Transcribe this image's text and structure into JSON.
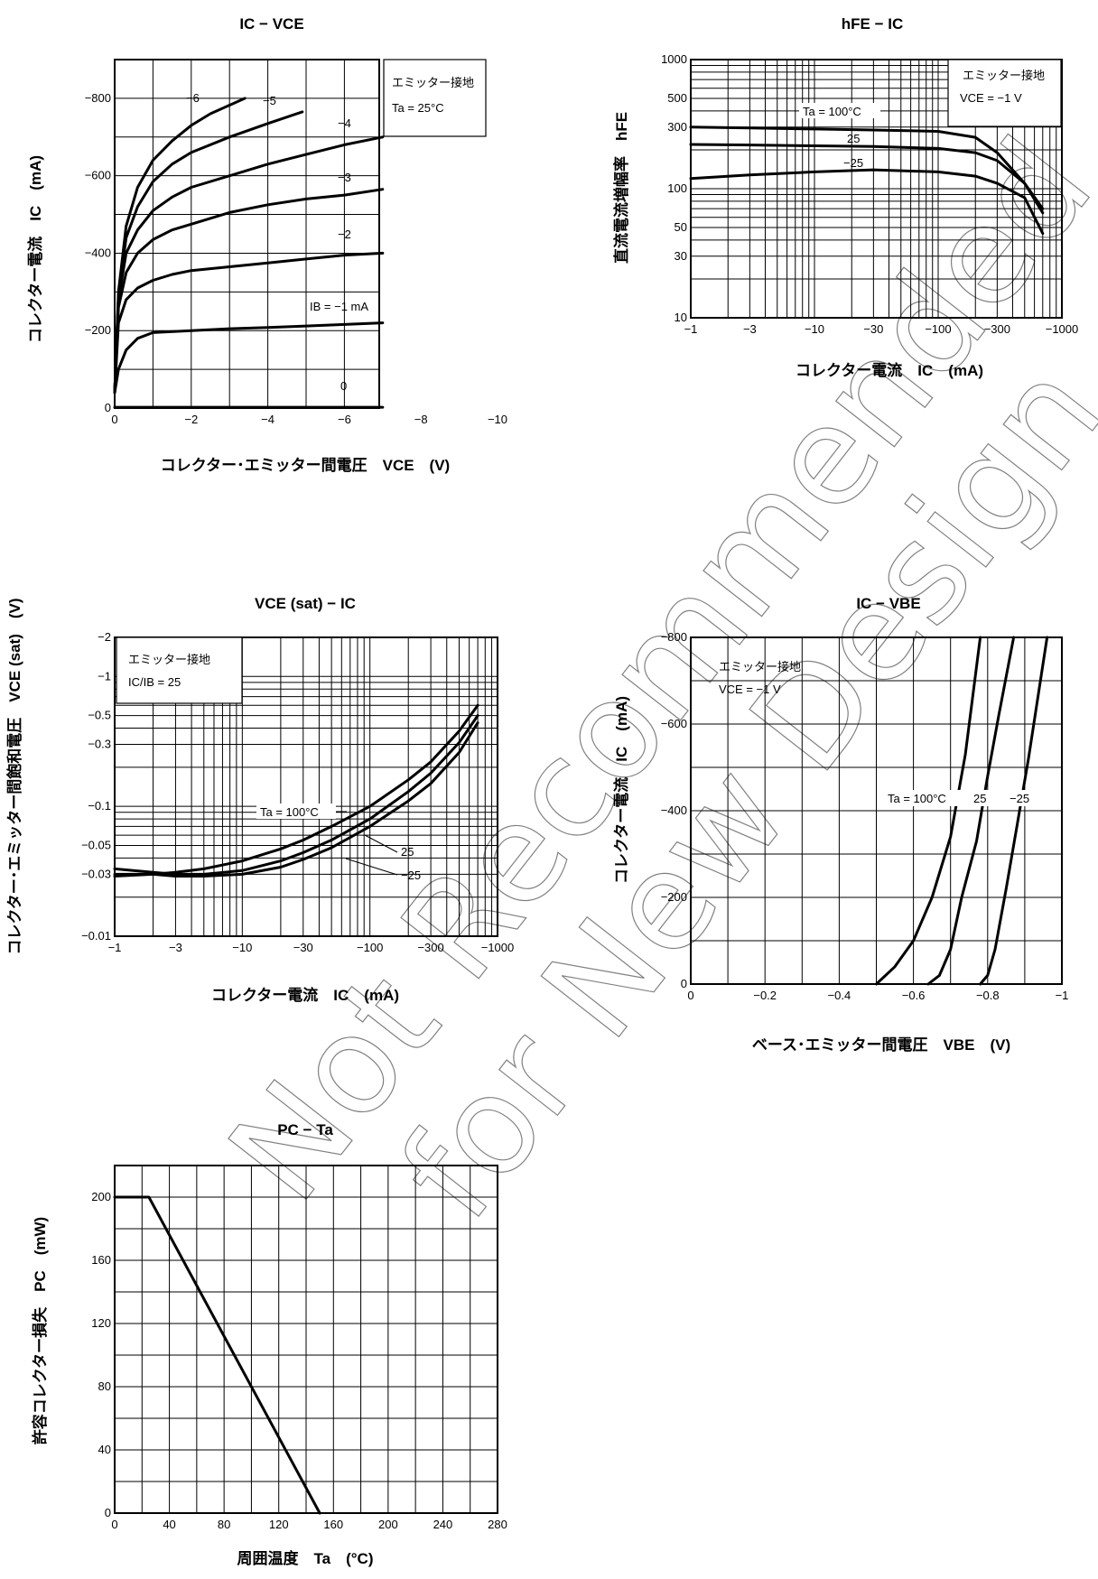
{
  "chart_data": [
    {
      "type": "line",
      "title": "IC − VCE",
      "xlabel": "コレクター･エミッター間電圧　VCE　(V)",
      "ylabel": "コレクター電流　IC　(mA)",
      "xlim": [
        0,
        -10
      ],
      "ylim": [
        0,
        -900
      ],
      "xticks": [
        0,
        -2,
        -4,
        -6,
        -8,
        -10
      ],
      "yticks": [
        0,
        -200,
        -400,
        -600,
        -800
      ],
      "grid": true,
      "legend_box": [
        "エミッター接地",
        "Ta = 25°C"
      ],
      "series": [
        {
          "name": "IB = −1 mA",
          "x": [
            0,
            -0.1,
            -0.3,
            -0.6,
            -1.0,
            -2,
            -3,
            -4,
            -5,
            -6,
            -7
          ],
          "y": [
            -40,
            -100,
            -150,
            -180,
            -195,
            -200,
            -205,
            -208,
            -212,
            -216,
            -220
          ]
        },
        {
          "name": "−2",
          "x": [
            0,
            -0.1,
            -0.3,
            -0.6,
            -1.0,
            -1.5,
            -2,
            -3,
            -4,
            -5,
            -6,
            -7
          ],
          "y": [
            -40,
            -220,
            -280,
            -310,
            -330,
            -345,
            -355,
            -365,
            -375,
            -385,
            -395,
            -400
          ]
        },
        {
          "name": "−3",
          "x": [
            0,
            -0.1,
            -0.3,
            -0.6,
            -1.0,
            -1.5,
            -2,
            -3,
            -4,
            -5,
            -6,
            -7
          ],
          "y": [
            -40,
            -260,
            -350,
            -400,
            -435,
            -460,
            -475,
            -505,
            -525,
            -540,
            -550,
            -565
          ]
        },
        {
          "name": "−4",
          "x": [
            0,
            -0.1,
            -0.3,
            -0.6,
            -1.0,
            -1.5,
            -2,
            -3,
            -4,
            -5,
            -6,
            -7
          ],
          "y": [
            -40,
            -280,
            -400,
            -460,
            -510,
            -545,
            -570,
            -600,
            -630,
            -655,
            -680,
            -700
          ]
        },
        {
          "name": "−5",
          "x": [
            0,
            -0.1,
            -0.3,
            -0.6,
            -1.0,
            -1.5,
            -2,
            -3,
            -4,
            -4.9
          ],
          "y": [
            -40,
            -290,
            -440,
            -520,
            -585,
            -630,
            -660,
            -700,
            -735,
            -765
          ]
        },
        {
          "name": "−6",
          "x": [
            0,
            -0.1,
            -0.3,
            -0.6,
            -1.0,
            -1.5,
            -2,
            -2.5,
            -3.4
          ],
          "y": [
            -40,
            -300,
            -470,
            -570,
            -640,
            -690,
            -730,
            -760,
            -800
          ]
        },
        {
          "name": "0",
          "x": [
            0,
            -7
          ],
          "y": [
            -2,
            -2
          ]
        }
      ]
    },
    {
      "type": "line",
      "title": "hFE − IC",
      "xlabel": "コレクター電流　IC　(mA)",
      "ylabel": "直流電流増幅率　hFE",
      "xscale": "log",
      "yscale": "log",
      "xlim": [
        -1,
        -1000
      ],
      "ylim": [
        10,
        1000
      ],
      "xticks": [
        -1,
        -3,
        -10,
        -30,
        -100,
        -300,
        -1000
      ],
      "yticks": [
        10,
        30,
        50,
        100,
        300,
        500,
        1000
      ],
      "grid": true,
      "legend_box": [
        "エミッター接地",
        "VCE = −1 V"
      ],
      "series": [
        {
          "name": "Ta = 100°C",
          "x": [
            -1,
            -3,
            -10,
            -30,
            -100,
            -200,
            -300,
            -500,
            -700
          ],
          "y": [
            300,
            295,
            290,
            285,
            278,
            250,
            190,
            110,
            65
          ]
        },
        {
          "name": "25",
          "x": [
            -1,
            -3,
            -10,
            -30,
            -100,
            -200,
            -300,
            -500,
            -700
          ],
          "y": [
            220,
            218,
            215,
            212,
            205,
            190,
            165,
            110,
            70
          ]
        },
        {
          "name": "−25",
          "x": [
            -1,
            -3,
            -10,
            -30,
            -100,
            -200,
            -300,
            -500,
            -700
          ],
          "y": [
            120,
            128,
            135,
            140,
            135,
            125,
            110,
            85,
            45
          ]
        }
      ]
    },
    {
      "type": "line",
      "title": "VCE (sat) − IC",
      "xlabel": "コレクター電流　IC　(mA)",
      "ylabel": "コレクター･エミッター間飽和電圧　VCE (sat)　(V)",
      "xscale": "log",
      "yscale": "log",
      "xlim": [
        -1,
        -1000
      ],
      "ylim": [
        -0.01,
        -2
      ],
      "xticks": [
        -1,
        -3,
        -10,
        -30,
        -100,
        -300,
        -1000
      ],
      "yticks": [
        -2,
        -1,
        -0.5,
        -0.3,
        -0.1,
        -0.05,
        -0.03,
        -0.01
      ],
      "grid": true,
      "legend_box": [
        "エミッター接地",
        "IC/IB = 25"
      ],
      "series": [
        {
          "name": "Ta = 100°C",
          "x": [
            -1,
            -2,
            -3,
            -5,
            -10,
            -20,
            -30,
            -50,
            -100,
            -200,
            -300,
            -500,
            -700
          ],
          "y": [
            -0.029,
            -0.03,
            -0.031,
            -0.033,
            -0.038,
            -0.047,
            -0.055,
            -0.07,
            -0.1,
            -0.16,
            -0.22,
            -0.38,
            -0.6
          ]
        },
        {
          "name": "25",
          "x": [
            -1,
            -2,
            -3,
            -5,
            -10,
            -20,
            -30,
            -50,
            -100,
            -200,
            -300,
            -500,
            -700
          ],
          "y": [
            -0.033,
            -0.031,
            -0.03,
            -0.03,
            -0.032,
            -0.038,
            -0.044,
            -0.055,
            -0.08,
            -0.13,
            -0.18,
            -0.31,
            -0.5
          ]
        },
        {
          "name": "−25",
          "x": [
            -1,
            -2,
            -3,
            -5,
            -10,
            -20,
            -30,
            -50,
            -100,
            -200,
            -300,
            -500,
            -700
          ],
          "y": [
            -0.03,
            -0.03,
            -0.029,
            -0.029,
            -0.03,
            -0.034,
            -0.039,
            -0.048,
            -0.07,
            -0.11,
            -0.15,
            -0.26,
            -0.44
          ]
        }
      ]
    },
    {
      "type": "line",
      "title": "IC − VBE",
      "xlabel": "ベース･エミッター間電圧　VBE　(V)",
      "ylabel": "コレクター電流　IC　(mA)",
      "xlim": [
        0,
        -1.0
      ],
      "ylim": [
        0,
        -800
      ],
      "xticks": [
        0,
        -0.2,
        -0.4,
        -0.6,
        -0.8,
        -1.0
      ],
      "yticks": [
        0,
        -200,
        -400,
        -600,
        -800
      ],
      "grid": true,
      "legend_box": [
        "エミッター接地",
        "VCE = −1 V"
      ],
      "series": [
        {
          "name": "Ta = 100°C",
          "x": [
            -0.5,
            -0.55,
            -0.6,
            -0.65,
            -0.7,
            -0.74,
            -0.78
          ],
          "y": [
            0,
            -40,
            -100,
            -200,
            -340,
            -530,
            -800
          ]
        },
        {
          "name": "25",
          "x": [
            -0.64,
            -0.67,
            -0.7,
            -0.73,
            -0.77,
            -0.8,
            -0.83,
            -0.87
          ],
          "y": [
            0,
            -20,
            -80,
            -200,
            -330,
            -480,
            -620,
            -800
          ]
        },
        {
          "name": "−25",
          "x": [
            -0.78,
            -0.8,
            -0.82,
            -0.85,
            -0.88,
            -0.91,
            -0.96
          ],
          "y": [
            0,
            -20,
            -80,
            -220,
            -370,
            -520,
            -800
          ]
        }
      ]
    },
    {
      "type": "line",
      "title": "PC − Ta",
      "xlabel": "周囲温度　Ta　(°C)",
      "ylabel": "許容コレクター損失　PC　(mW)",
      "xlim": [
        0,
        280
      ],
      "ylim": [
        0,
        220
      ],
      "xticks": [
        0,
        40,
        80,
        120,
        160,
        200,
        240,
        280
      ],
      "yticks": [
        0,
        40,
        80,
        120,
        160,
        200
      ],
      "grid": true,
      "series": [
        {
          "name": "",
          "x": [
            0,
            25,
            150
          ],
          "y": [
            200,
            200,
            0
          ]
        }
      ]
    }
  ],
  "watermark": [
    "Not Recommended",
    "for New Design"
  ]
}
